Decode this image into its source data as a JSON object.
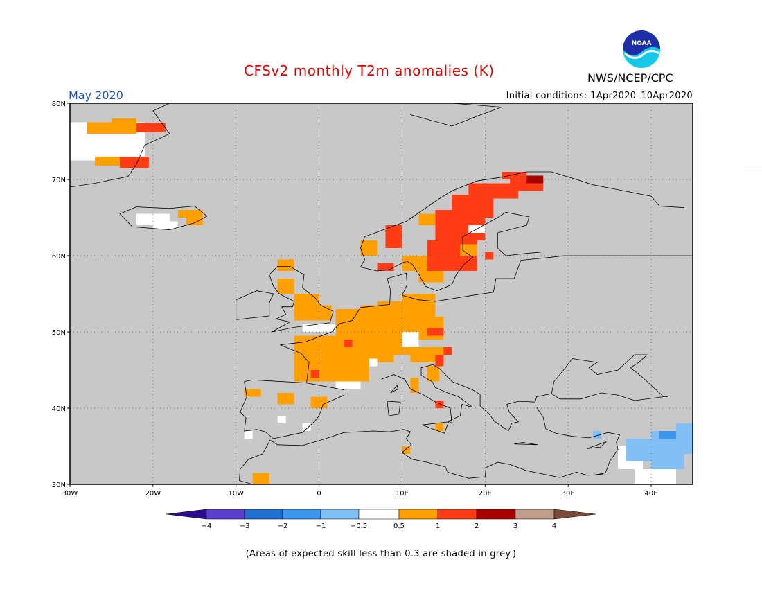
{
  "title": "CFSv2 monthly T2m anomalies (K)",
  "month_label": "May 2020",
  "initial_conditions": "Initial conditions: 1Apr2020–10Apr2020",
  "agency": "NWS/NCEP/CPC",
  "logo": {
    "icon": "noaa-logo-icon",
    "text": "NOAA"
  },
  "footnote": "(Areas of expected skill less than 0.3 are shaded in grey.)",
  "map": {
    "lon_range": [
      -30,
      45
    ],
    "lat_range": [
      30,
      80
    ],
    "background_color": "#c8c8c8",
    "grid": "dotted",
    "lat_labels": [
      "30N",
      "40N",
      "50N",
      "60N",
      "70N",
      "80N"
    ],
    "lon_labels": [
      "30W",
      "20W",
      "10W",
      "0",
      "10E",
      "20E",
      "30E",
      "40E"
    ]
  },
  "colorbar": {
    "labels": [
      "−4",
      "−3",
      "−2",
      "−1",
      "−0.5",
      "0.5",
      "1",
      "2",
      "3",
      "4"
    ],
    "colors": [
      "#2b0c8f",
      "#5b3fcf",
      "#1f6fd0",
      "#3c96ee",
      "#82bff5",
      "#ffffff",
      "#ffa000",
      "#ff3c14",
      "#a80000",
      "#c29e8c",
      "#7a4a3a"
    ]
  },
  "anomaly_colors": {
    "neutral": "#ffffff",
    "warm1": "#ffa000",
    "warm2": "#ff3c14",
    "warm3": "#a80000",
    "cool1": "#82bff5",
    "cool2": "#3c96ee"
  }
}
